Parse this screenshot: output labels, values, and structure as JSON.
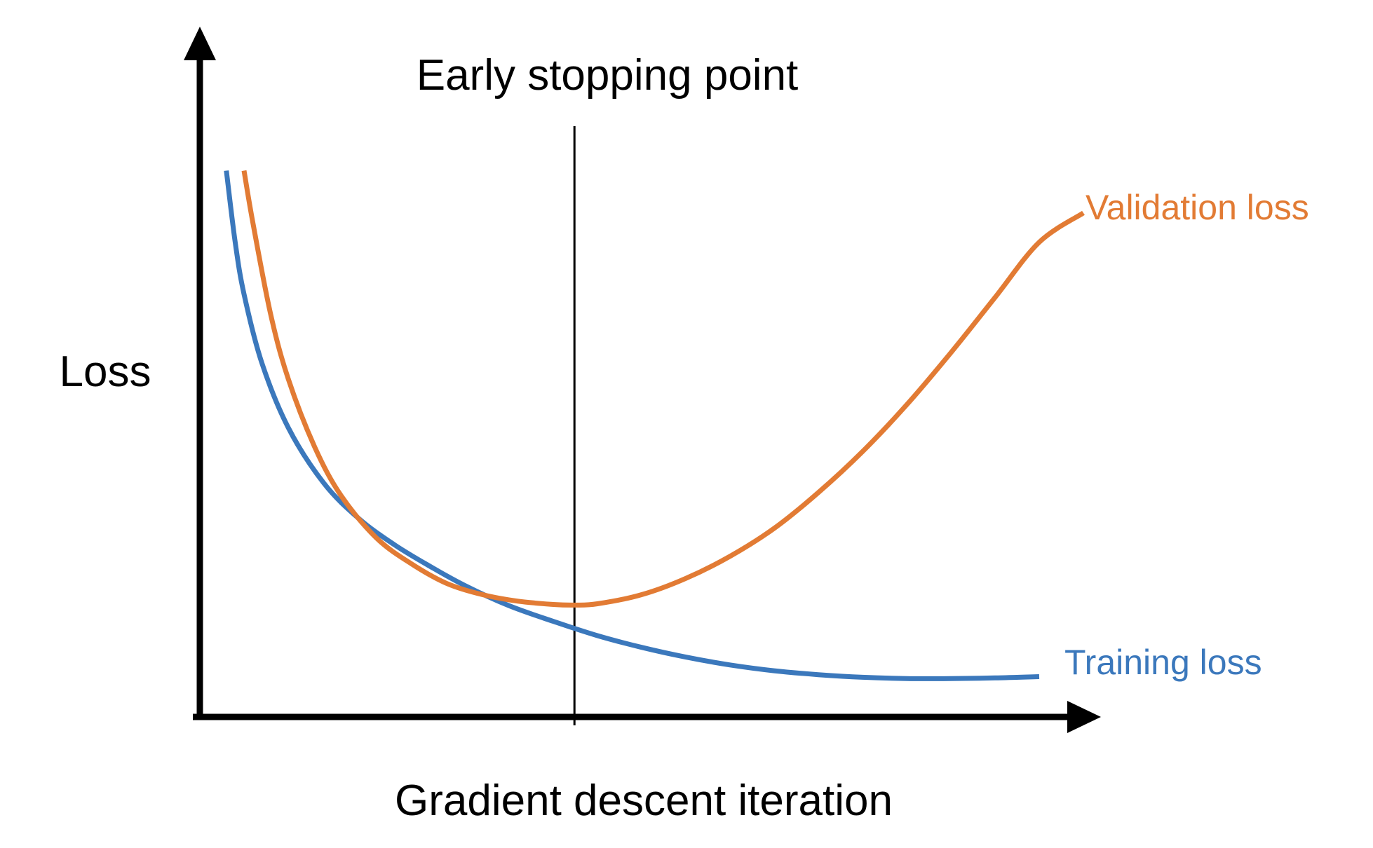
{
  "chart_data": {
    "type": "line",
    "title": "",
    "xlabel": "Gradient descent iteration",
    "ylabel": "Loss",
    "xlim": [
      0,
      100
    ],
    "ylim": [
      0,
      100
    ],
    "grid": false,
    "ticks": "none",
    "annotation": {
      "label": "Early stopping point",
      "x": 42.4
    },
    "colors": {
      "axis": "#000000",
      "training": "#3B78BC",
      "validation": "#E27B34"
    },
    "series": [
      {
        "name": "Training loss",
        "color": "#3B78BC",
        "x": [
          3,
          4,
          5,
          7,
          10,
          14,
          18,
          22,
          26,
          30,
          35,
          40,
          45,
          50,
          55,
          60,
          65,
          70,
          75,
          80,
          85,
          90,
          95
        ],
        "y": [
          84,
          73,
          65,
          54.5,
          44.5,
          36,
          30.5,
          26.5,
          23.2,
          20.2,
          17.1,
          14.7,
          12.5,
          10.7,
          9.2,
          8.0,
          7.1,
          6.5,
          6.1,
          5.9,
          5.9,
          6.0,
          6.2
        ]
      },
      {
        "name": "Validation loss",
        "color": "#E27B34",
        "x": [
          5,
          6,
          8,
          10,
          13,
          16,
          20,
          24,
          28,
          32,
          36,
          40,
          42.4,
          45,
          50,
          55,
          60,
          65,
          70,
          75,
          80,
          85,
          90,
          95,
          100
        ],
        "y": [
          84,
          76,
          62,
          52,
          41.5,
          34,
          27.5,
          23.5,
          20.5,
          18.8,
          17.8,
          17.3,
          17.2,
          17.4,
          18.8,
          21.3,
          24.7,
          29.0,
          34.5,
          40.8,
          48.0,
          56.0,
          64.5,
          73.0,
          77.5
        ]
      }
    ]
  }
}
